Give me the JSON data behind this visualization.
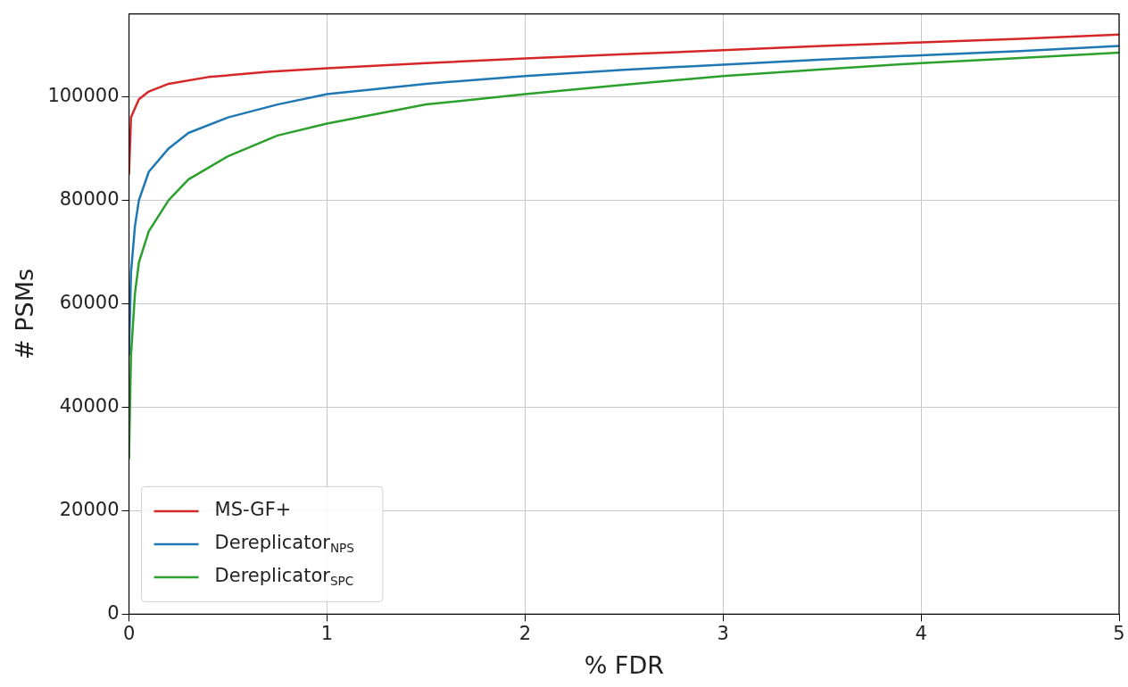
{
  "chart_data": {
    "type": "line",
    "xlabel": "% FDR",
    "ylabel": "# PSMs",
    "xlim": [
      0,
      5
    ],
    "xticks": [
      0,
      1,
      2,
      3,
      4,
      5
    ],
    "ylim": [
      0,
      116000
    ],
    "yticks": [
      0,
      20000,
      40000,
      60000,
      80000,
      100000
    ],
    "grid": true,
    "legend": "bottom left",
    "marker": "none",
    "line_style": "solid",
    "series": [
      {
        "name": "MS-GF+",
        "color": "#d62728",
        "x": [
          0,
          0.01,
          0.05,
          0.1,
          0.2,
          0.4,
          0.7,
          1,
          1.5,
          2,
          2.5,
          3,
          3.5,
          4,
          4.5,
          5
        ],
        "values": [
          85000,
          96000,
          99500,
          101000,
          102500,
          103800,
          104800,
          105500,
          106500,
          107400,
          108200,
          109000,
          109800,
          110500,
          111200,
          112000
        ]
      },
      {
        "name": "Dereplicator$_{NPS}$",
        "color": "#1f77b4",
        "x": [
          0,
          0.01,
          0.03,
          0.05,
          0.1,
          0.2,
          0.3,
          0.5,
          0.75,
          1,
          1.5,
          2,
          2.5,
          3,
          3.5,
          4,
          4.5,
          5
        ],
        "values": [
          50000,
          66000,
          75000,
          80000,
          85500,
          90000,
          93000,
          96000,
          98500,
          100500,
          102500,
          104000,
          105200,
          106200,
          107200,
          108000,
          108800,
          109800
        ]
      },
      {
        "name": "Dereplicator$_{SPC}$",
        "color": "#2ca02c",
        "x": [
          0,
          0.01,
          0.03,
          0.05,
          0.1,
          0.2,
          0.3,
          0.5,
          0.75,
          1,
          1.5,
          2,
          2.5,
          3,
          3.5,
          4,
          4.5,
          5
        ],
        "values": [
          30000,
          50000,
          62000,
          68000,
          74000,
          80000,
          84000,
          88500,
          92500,
          94800,
          98500,
          100500,
          102300,
          104000,
          105300,
          106500,
          107500,
          108500
        ]
      }
    ]
  }
}
